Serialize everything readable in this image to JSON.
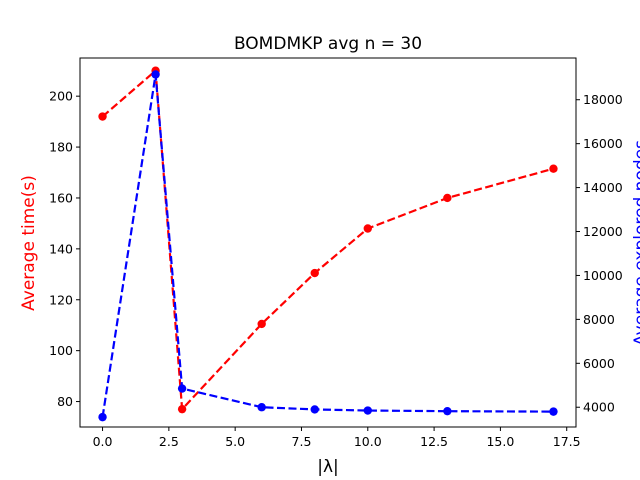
{
  "chart_data": {
    "type": "line",
    "title": "BOMDMKP avg n = 30",
    "xlabel": "|λ|",
    "ylabel_left": "Average time(s)",
    "ylabel_right": "Average explored nodes",
    "xlim": [
      -0.85,
      17.85
    ],
    "ylim_left": [
      70,
      215
    ],
    "ylim_right": [
      3100,
      19900
    ],
    "x_ticks": [
      0.0,
      2.5,
      5.0,
      7.5,
      10.0,
      12.5,
      15.0,
      17.5
    ],
    "x_tick_labels": [
      "0.0",
      "2.5",
      "5.0",
      "7.5",
      "10.0",
      "12.5",
      "15.0",
      "17.5"
    ],
    "y_left_ticks": [
      80,
      100,
      120,
      140,
      160,
      180,
      200
    ],
    "y_left_tick_labels": [
      "80",
      "100",
      "120",
      "140",
      "160",
      "180",
      "200"
    ],
    "y_right_ticks": [
      4000,
      6000,
      8000,
      10000,
      12000,
      14000,
      16000,
      18000
    ],
    "y_right_tick_labels": [
      "4000",
      "6000",
      "8000",
      "10000",
      "12000",
      "14000",
      "16000",
      "18000"
    ],
    "grid": false,
    "series": [
      {
        "axis": "left",
        "color": "#ff0000",
        "line_style": "dashed",
        "marker": "circle",
        "x": [
          0,
          2,
          3,
          6,
          8,
          10,
          13,
          17
        ],
        "values": [
          192,
          210,
          77,
          110.5,
          130.5,
          148,
          160,
          171.5
        ]
      },
      {
        "axis": "right",
        "color": "#0000ff",
        "line_style": "dashed",
        "marker": "circle",
        "x": [
          0,
          2,
          3,
          6,
          8,
          10,
          13,
          17
        ],
        "values": [
          3550,
          19150,
          4850,
          4000,
          3900,
          3850,
          3820,
          3800
        ]
      }
    ]
  }
}
